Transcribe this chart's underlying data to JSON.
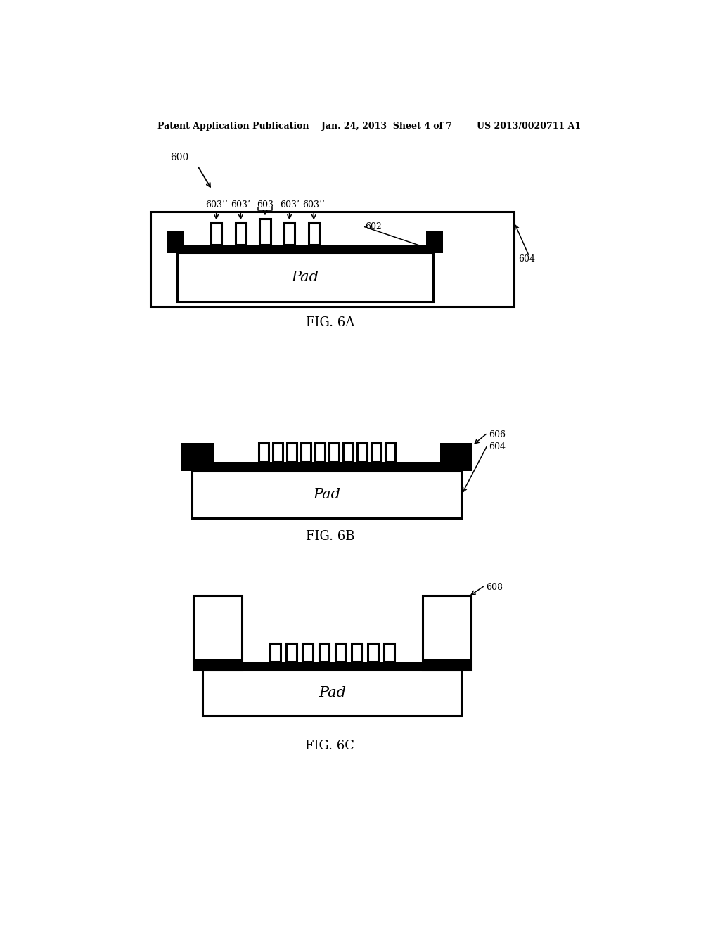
{
  "bg_color": "#ffffff",
  "lc": "#000000",
  "lw": 2.2,
  "header": "Patent Application Publication    Jan. 24, 2013  Sheet 4 of 7        US 2013/0020711 A1",
  "cap6a": "FIG. 6A",
  "cap6b": "FIG. 6B",
  "cap6c": "FIG. 6C",
  "pad_label": "Pad",
  "lbl_600": "600",
  "lbl_603pp_L": "603’’",
  "lbl_603p_L": "603’",
  "lbl_603": "603",
  "lbl_603p_R": "603’",
  "lbl_603pp_R": "603’’",
  "lbl_602": "602",
  "lbl_604a": "604",
  "lbl_606": "606",
  "lbl_604b": "604",
  "lbl_608": "608"
}
